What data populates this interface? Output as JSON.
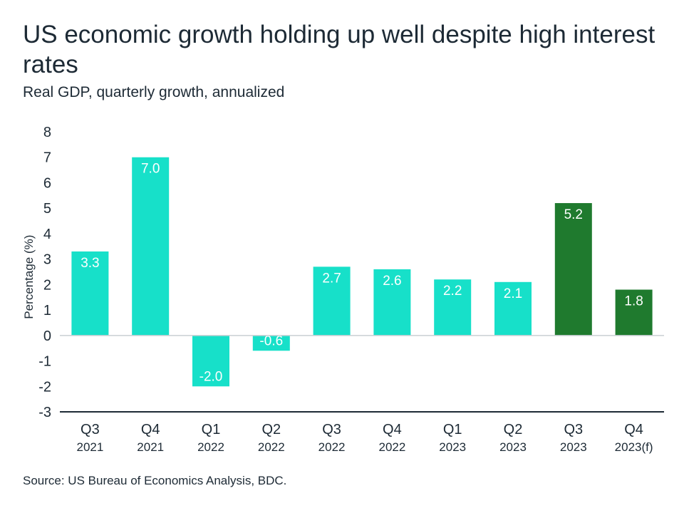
{
  "header": {
    "title": "US economic growth holding up well despite high interest rates",
    "subtitle": "Real GDP, quarterly growth, annualized"
  },
  "footer": {
    "source": "Source: US Bureau of Economics Analysis, BDC."
  },
  "colors": {
    "actual": "#17e0c9",
    "recent": "#1f7a2e",
    "axis": "#1d2a35"
  },
  "chart_data": {
    "type": "bar",
    "ylabel": "Percentage (%)",
    "ylim": [
      -3,
      8
    ],
    "yticks": [
      8,
      7,
      6,
      5,
      4,
      3,
      2,
      1,
      0,
      -1,
      -2,
      -3
    ],
    "categories": [
      {
        "quarter": "Q3",
        "year": "2021"
      },
      {
        "quarter": "Q4",
        "year": "2021"
      },
      {
        "quarter": "Q1",
        "year": "2022"
      },
      {
        "quarter": "Q2",
        "year": "2022"
      },
      {
        "quarter": "Q3",
        "year": "2022"
      },
      {
        "quarter": "Q4",
        "year": "2022"
      },
      {
        "quarter": "Q1",
        "year": "2023"
      },
      {
        "quarter": "Q2",
        "year": "2023"
      },
      {
        "quarter": "Q3",
        "year": "2023"
      },
      {
        "quarter": "Q4",
        "year": "2023(f)"
      }
    ],
    "values": [
      3.3,
      7.0,
      -2.0,
      -0.6,
      2.7,
      2.6,
      2.2,
      2.1,
      5.2,
      1.8
    ],
    "data_labels": [
      "3.3",
      "7.0",
      "-2.0",
      "-0.6",
      "2.7",
      "2.6",
      "2.2",
      "2.1",
      "5.2",
      "1.8"
    ],
    "highlighted": [
      false,
      false,
      false,
      false,
      false,
      false,
      false,
      false,
      true,
      true
    ],
    "grid": false
  }
}
